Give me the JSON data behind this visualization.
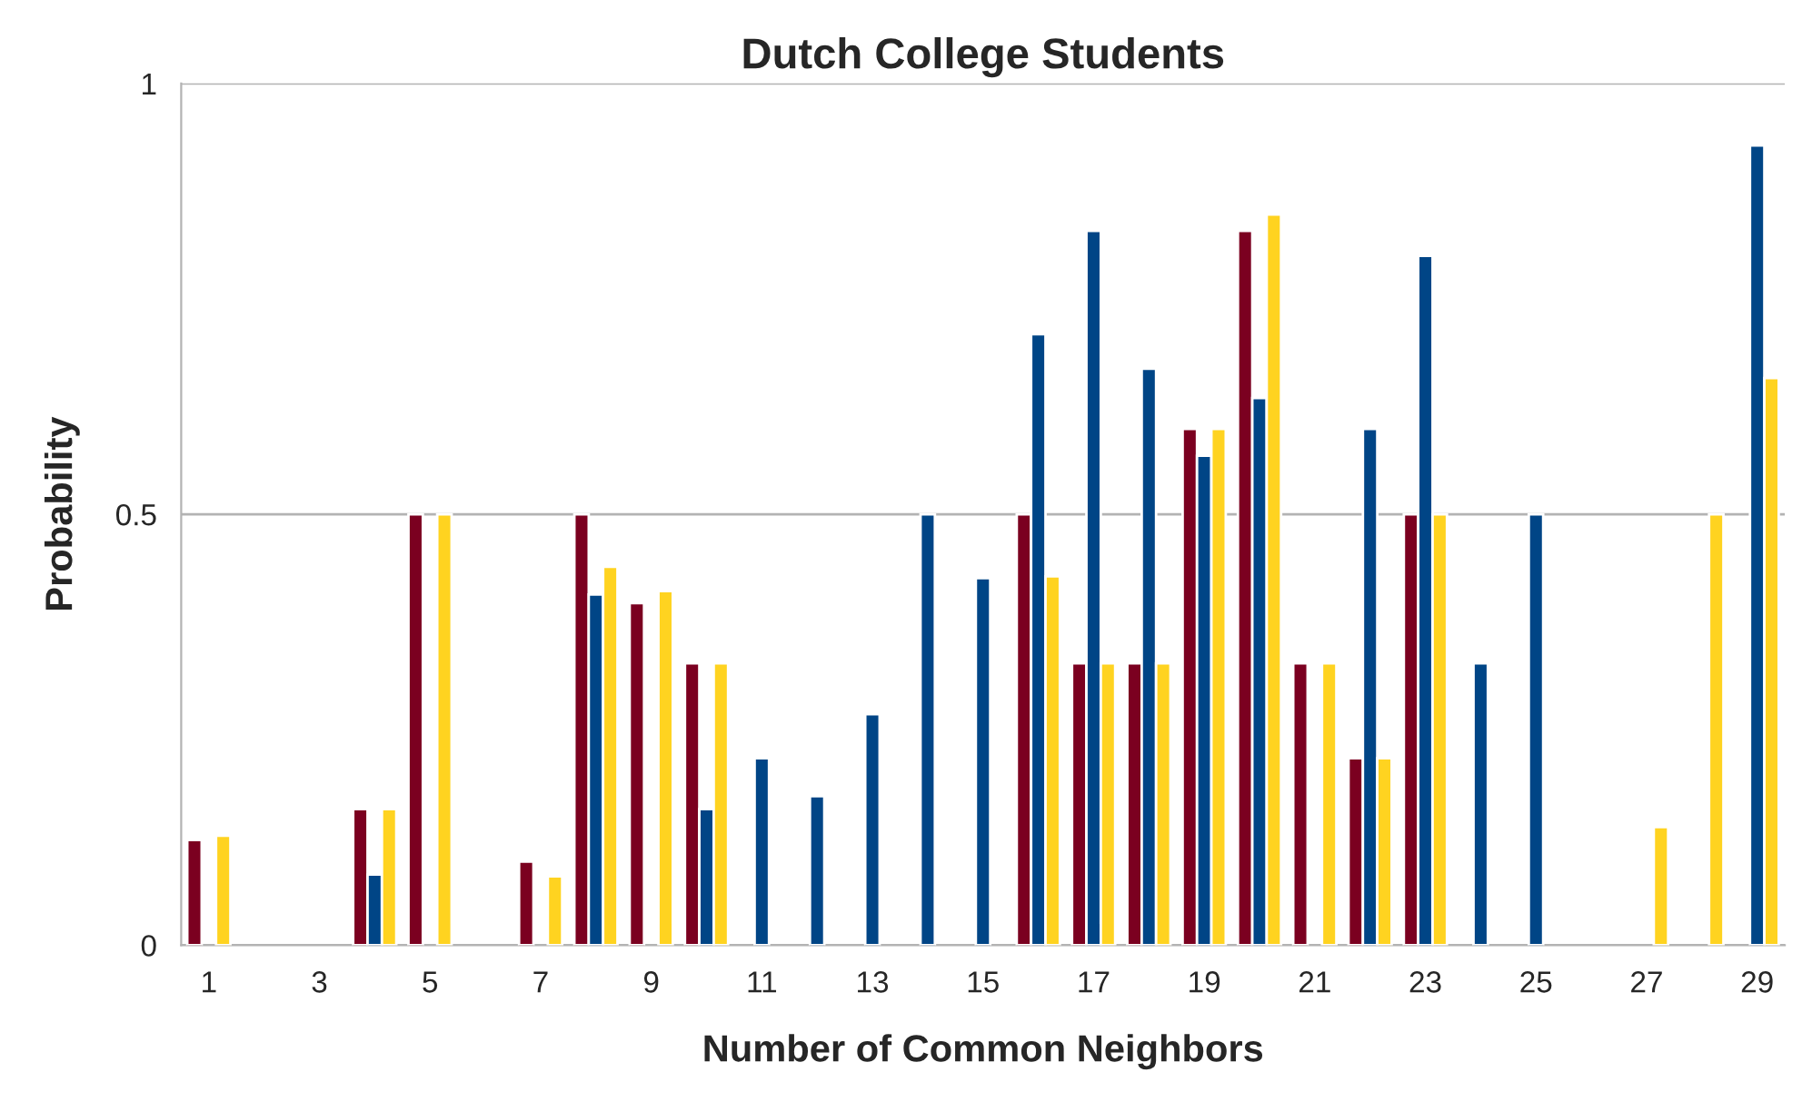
{
  "chart_data": {
    "type": "bar",
    "title": "Dutch College Students",
    "xlabel": "Number of Common Neighbors",
    "ylabel": "Probability",
    "categories": [
      "1",
      null,
      "3",
      null,
      "5",
      null,
      "7",
      null,
      "9",
      null,
      "11",
      null,
      "13",
      null,
      "15",
      null,
      "17",
      null,
      "19",
      null,
      "21",
      null,
      "23",
      null,
      "25",
      null,
      "27",
      null,
      "29"
    ],
    "series": [
      {
        "color": "#7b0020",
        "values": [
          0.122,
          null,
          null,
          0.158,
          0.5,
          null,
          0.097,
          0.5,
          0.397,
          0.327,
          null,
          null,
          null,
          null,
          null,
          0.5,
          0.327,
          0.327,
          0.599,
          0.829,
          0.327,
          0.217,
          0.5,
          null,
          null,
          null,
          null,
          null,
          null
        ]
      },
      {
        "color": "#004586",
        "values": [
          null,
          null,
          null,
          0.082,
          null,
          null,
          null,
          0.407,
          null,
          0.158,
          0.217,
          0.173,
          0.268,
          0.5,
          0.426,
          0.709,
          0.829,
          0.669,
          0.568,
          0.635,
          null,
          0.599,
          0.8,
          0.327,
          0.5,
          null,
          null,
          null,
          0.928
        ]
      },
      {
        "color": "#ffd320",
        "values": [
          0.127,
          null,
          null,
          0.158,
          0.5,
          null,
          0.08,
          0.439,
          0.411,
          0.327,
          null,
          null,
          null,
          null,
          null,
          0.428,
          0.327,
          0.327,
          0.599,
          0.848,
          0.327,
          0.217,
          0.5,
          null,
          null,
          null,
          0.137,
          0.5,
          0.658
        ]
      }
    ],
    "ylim": [
      0,
      1
    ],
    "yticks": [
      0,
      0.5,
      1
    ],
    "grid": "y",
    "legend": false
  }
}
